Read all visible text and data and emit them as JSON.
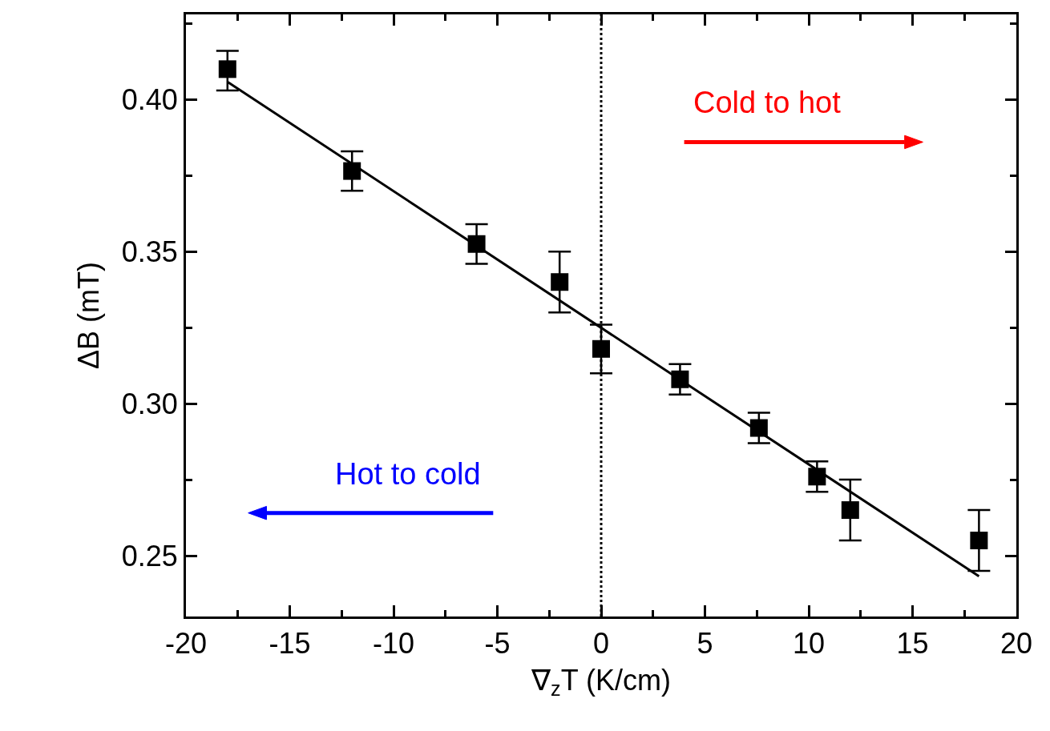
{
  "chart_data": {
    "type": "scatter",
    "xlabel": "∇$_{z}$T (K/cm)",
    "ylabel": "ΔB (mT)",
    "x": [
      -18,
      -12,
      -6,
      -2,
      0,
      3.8,
      7.6,
      10.4,
      12,
      18.2
    ],
    "series": [
      {
        "color": "#000000",
        "marker": "square",
        "values": [
          0.41,
          0.3765,
          0.3525,
          0.34,
          0.318,
          0.308,
          0.292,
          0.276,
          0.265,
          0.255
        ],
        "errors": [
          [
            0.403,
            0.416
          ],
          [
            0.37,
            0.383
          ],
          [
            0.346,
            0.359
          ],
          [
            0.33,
            0.35
          ],
          [
            0.31,
            0.326
          ],
          [
            0.303,
            0.313
          ],
          [
            0.287,
            0.297
          ],
          [
            0.271,
            0.281
          ],
          [
            0.255,
            0.275
          ],
          [
            0.245,
            0.265
          ]
        ]
      },
      {
        "type": "line",
        "color": "#000000",
        "line_style": "solid",
        "x": [
          -18,
          18.2
        ],
        "values": [
          0.4058,
          0.2432
        ]
      }
    ],
    "xlim": [
      -20,
      20
    ],
    "ylim": [
      0.23,
      0.428
    ],
    "xticks": [
      -20,
      {
        "value": -17.5,
        "label": null
      },
      -15,
      {
        "value": -12.5,
        "label": null
      },
      -10,
      {
        "value": -7.5,
        "label": null
      },
      -5,
      {
        "value": -2.5,
        "label": null
      },
      0,
      {
        "value": 2.5,
        "label": null
      },
      5,
      {
        "value": 7.5,
        "label": null
      },
      10,
      {
        "value": 12.5,
        "label": null
      },
      15,
      {
        "value": 17.5,
        "label": null
      },
      20
    ],
    "yticks": [
      {
        "value": 0.25,
        "label": "0.25"
      },
      {
        "value": 0.275,
        "label": null
      },
      {
        "value": 0.3,
        "label": "0.30"
      },
      {
        "value": 0.325,
        "label": null
      },
      {
        "value": 0.35,
        "label": "0.35"
      },
      {
        "value": 0.375,
        "label": null
      },
      {
        "value": 0.4,
        "label": "0.40"
      },
      {
        "value": 0.425,
        "label": null
      }
    ],
    "ref_lines": [
      {
        "axis": "x",
        "value": 0,
        "label": null,
        "color": "#000000",
        "line_style": "dotted"
      }
    ],
    "annotations": [
      "Cold to hot",
      "Hot to cold"
    ]
  }
}
